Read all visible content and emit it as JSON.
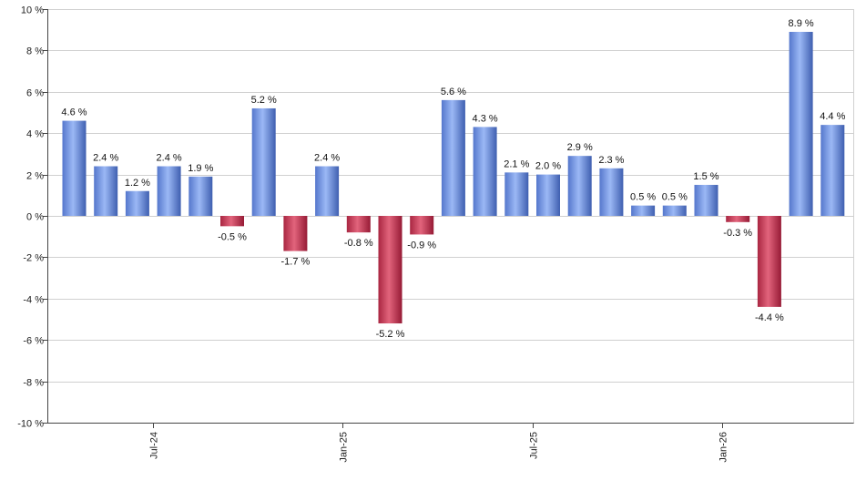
{
  "chart_data": {
    "type": "bar",
    "title": "",
    "xlabel": "",
    "ylabel": "",
    "ylim": [
      -10,
      10
    ],
    "y_ticks": [
      10,
      8,
      6,
      4,
      2,
      0,
      -2,
      -4,
      -6,
      -8,
      -10
    ],
    "y_tick_labels": [
      "10 %",
      "8 %",
      "6 %",
      "4 %",
      "2 %",
      "0 %",
      "-2 %",
      "-4 %",
      "-6 %",
      "-8 %",
      "-10 %"
    ],
    "grid": true,
    "x_tick_labels": [
      {
        "label": "Jul-24",
        "index": 2.5
      },
      {
        "label": "Jan-25",
        "index": 8.5
      },
      {
        "label": "Jul-25",
        "index": 14.5
      },
      {
        "label": "Jan-26",
        "index": 20.5
      }
    ],
    "values": [
      4.6,
      2.4,
      1.2,
      2.4,
      1.9,
      -0.5,
      5.2,
      -1.7,
      2.4,
      -0.8,
      -5.2,
      -0.9,
      5.6,
      4.3,
      2.1,
      2.0,
      2.9,
      2.3,
      0.5,
      0.5,
      1.5,
      -0.3,
      -4.4,
      8.9,
      4.4
    ],
    "data_labels": [
      "4.6 %",
      "2.4 %",
      "1.2 %",
      "2.4 %",
      "1.9 %",
      "-0.5 %",
      "5.2 %",
      "-1.7 %",
      "2.4 %",
      "-0.8 %",
      "-5.2 %",
      "-0.9 %",
      "5.6 %",
      "4.3 %",
      "2.1 %",
      "2.0 %",
      "2.9 %",
      "2.3 %",
      "0.5 %",
      "0.5 %",
      "1.5 %",
      "-0.3 %",
      "-4.4 %",
      "8.9 %",
      "4.4 %"
    ],
    "positive_color": "#7396e0",
    "negative_color": "#c43a55"
  }
}
